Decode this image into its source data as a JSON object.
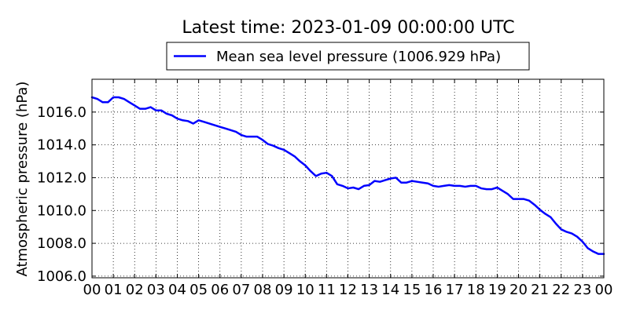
{
  "chart_data": {
    "type": "line",
    "title": "Latest time: 2023-01-09 00:00:00 UTC",
    "xlabel": "",
    "ylabel": "Atmospheric pressure (hPa)",
    "x_unit": "hour (UTC)",
    "xlim": [
      0,
      24
    ],
    "ylim": [
      1005.9,
      1018.0
    ],
    "grid": true,
    "legend_position": "top-center (outside plot)",
    "x_ticks": [
      "00",
      "01",
      "02",
      "03",
      "04",
      "05",
      "06",
      "07",
      "08",
      "09",
      "10",
      "11",
      "12",
      "13",
      "14",
      "15",
      "16",
      "17",
      "18",
      "19",
      "20",
      "21",
      "22",
      "23",
      "00"
    ],
    "y_ticks": [
      "1006.0",
      "1008.0",
      "1010.0",
      "1012.0",
      "1014.0",
      "1016.0"
    ],
    "series": [
      {
        "name": "Mean sea level pressure (1006.929 hPa)",
        "color": "#0000ff",
        "x": [
          0.0,
          0.25,
          0.5,
          0.75,
          1.0,
          1.25,
          1.5,
          1.75,
          2.0,
          2.25,
          2.5,
          2.75,
          3.0,
          3.25,
          3.5,
          3.75,
          4.0,
          4.25,
          4.5,
          4.75,
          5.0,
          5.25,
          5.5,
          5.75,
          6.0,
          6.25,
          6.5,
          6.75,
          7.0,
          7.25,
          7.5,
          7.75,
          8.0,
          8.25,
          8.5,
          8.75,
          9.0,
          9.25,
          9.5,
          9.75,
          10.0,
          10.25,
          10.5,
          10.75,
          11.0,
          11.25,
          11.5,
          11.75,
          12.0,
          12.25,
          12.5,
          12.75,
          13.0,
          13.25,
          13.5,
          13.75,
          14.0,
          14.25,
          14.5,
          14.75,
          15.0,
          15.25,
          15.5,
          15.75,
          16.0,
          16.25,
          16.5,
          16.75,
          17.0,
          17.25,
          17.5,
          17.75,
          18.0,
          18.25,
          18.5,
          18.75,
          19.0,
          19.25,
          19.5,
          19.75,
          20.0,
          20.25,
          20.5,
          20.75,
          21.0,
          21.25,
          21.5,
          21.75,
          22.0,
          22.25,
          22.5,
          22.75,
          23.0,
          23.25,
          23.5,
          23.75,
          24.0
        ],
        "y": [
          1016.9,
          1016.8,
          1016.6,
          1016.6,
          1016.9,
          1016.9,
          1016.8,
          1016.6,
          1016.4,
          1016.2,
          1016.2,
          1016.3,
          1016.1,
          1016.1,
          1015.9,
          1015.8,
          1015.6,
          1015.5,
          1015.45,
          1015.3,
          1015.5,
          1015.4,
          1015.3,
          1015.2,
          1015.1,
          1015.0,
          1014.9,
          1014.8,
          1014.6,
          1014.5,
          1014.5,
          1014.5,
          1014.3,
          1014.05,
          1013.95,
          1013.8,
          1013.7,
          1013.5,
          1013.3,
          1013.0,
          1012.75,
          1012.4,
          1012.1,
          1012.25,
          1012.3,
          1012.1,
          1011.6,
          1011.5,
          1011.35,
          1011.4,
          1011.3,
          1011.5,
          1011.55,
          1011.8,
          1011.75,
          1011.85,
          1011.95,
          1012.0,
          1011.7,
          1011.7,
          1011.8,
          1011.75,
          1011.7,
          1011.65,
          1011.5,
          1011.45,
          1011.5,
          1011.55,
          1011.5,
          1011.5,
          1011.45,
          1011.5,
          1011.5,
          1011.35,
          1011.3,
          1011.3,
          1011.4,
          1011.2,
          1011.0,
          1010.7,
          1010.7,
          1010.7,
          1010.6,
          1010.35,
          1010.05,
          1009.8,
          1009.6,
          1009.2,
          1008.85,
          1008.7,
          1008.6,
          1008.4,
          1008.1,
          1007.7,
          1007.5,
          1007.35,
          1007.35
        ]
      }
    ]
  }
}
